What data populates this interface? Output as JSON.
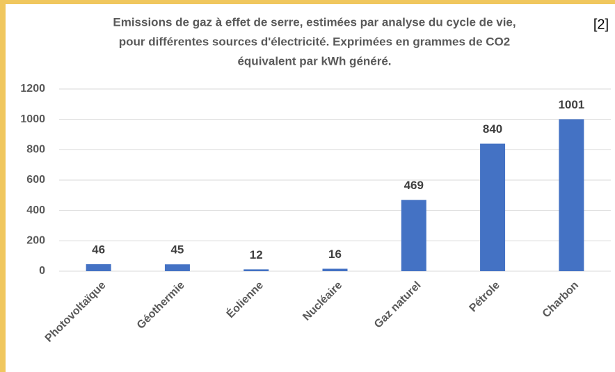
{
  "chart_data": {
    "type": "bar",
    "title": [
      "Emissions de gaz à  effet de serre, estimées par analyse du cycle de vie,",
      "pour différentes sources d'électricité. Exprimées en grammes de CO2",
      "équivalent par kWh généré."
    ],
    "annotation": "[2]",
    "categories": [
      "Photovoltaïque",
      "Géothermie",
      "Éolienne",
      "Nucléaire",
      "Gaz naturel",
      "Pétrole",
      "Charbon"
    ],
    "values": [
      46,
      45,
      12,
      16,
      469,
      840,
      1001
    ],
    "color": "#4472c4",
    "ylim": [
      0,
      1200
    ],
    "yticks": [
      0,
      200,
      400,
      600,
      800,
      1000,
      1200
    ],
    "grid": true
  }
}
